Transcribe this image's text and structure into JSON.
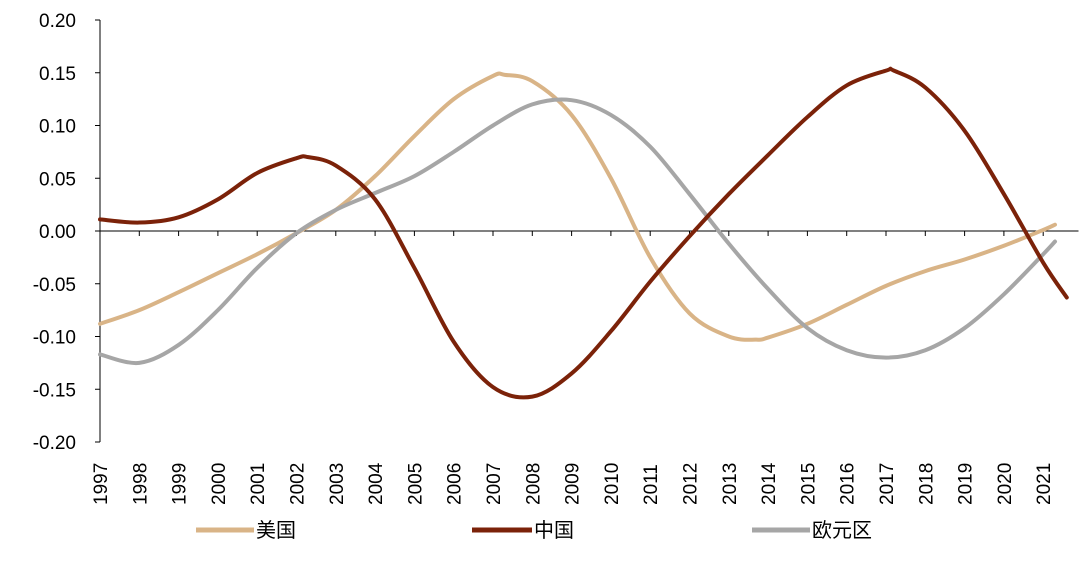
{
  "chart_data": {
    "type": "line",
    "title": "",
    "xlabel": "",
    "ylabel": "",
    "ylim": [
      -0.2,
      0.2
    ],
    "xlim": [
      1997,
      2022
    ],
    "y_ticks": [
      "0.20",
      "0.15",
      "0.10",
      "0.05",
      "0.00",
      "-0.05",
      "-0.10",
      "-0.15",
      "-0.20"
    ],
    "x_ticks": [
      "1997",
      "1998",
      "1999",
      "2000",
      "2001",
      "2002",
      "2003",
      "2004",
      "2005",
      "2006",
      "2007",
      "2008",
      "2009",
      "2010",
      "2011",
      "2012",
      "2013",
      "2014",
      "2015",
      "2016",
      "2017",
      "2018",
      "2019",
      "2020",
      "2021"
    ],
    "grid": false,
    "legend": "bottom",
    "series": [
      {
        "name": "美国",
        "color": "#D9B487",
        "x": [
          1997,
          1998,
          1999,
          2000,
          2001,
          2002,
          2003,
          2004,
          2005,
          2006,
          2007,
          2007.3,
          2008,
          2009,
          2010,
          2011,
          2012,
          2013,
          2013.7,
          2014,
          2015,
          2016,
          2017,
          2018,
          2019,
          2020,
          2021,
          2021.3
        ],
        "values": [
          -0.088,
          -0.075,
          -0.058,
          -0.04,
          -0.022,
          -0.002,
          0.02,
          0.052,
          0.09,
          0.125,
          0.147,
          0.148,
          0.142,
          0.11,
          0.05,
          -0.025,
          -0.078,
          -0.1,
          -0.103,
          -0.101,
          -0.088,
          -0.07,
          -0.052,
          -0.038,
          -0.027,
          -0.014,
          0.001,
          0.006
        ]
      },
      {
        "name": "中国",
        "color": "#7B2209",
        "x": [
          1997,
          1998,
          1999,
          2000,
          2001,
          2002,
          2002.3,
          2003,
          2004,
          2005,
          2006,
          2007,
          2008,
          2009,
          2010,
          2011,
          2012,
          2013,
          2014,
          2015,
          2016,
          2017,
          2017.2,
          2018,
          2019,
          2020,
          2021,
          2021.6
        ],
        "values": [
          0.011,
          0.008,
          0.013,
          0.03,
          0.055,
          0.069,
          0.07,
          0.062,
          0.03,
          -0.035,
          -0.105,
          -0.148,
          -0.157,
          -0.135,
          -0.095,
          -0.048,
          -0.005,
          0.035,
          0.072,
          0.108,
          0.138,
          0.152,
          0.152,
          0.136,
          0.095,
          0.035,
          -0.03,
          -0.063
        ]
      },
      {
        "name": "欧元区",
        "color": "#A6A6A6",
        "x": [
          1997,
          1998,
          1999,
          2000,
          2001,
          2002,
          2003,
          2004,
          2005,
          2006,
          2007,
          2008,
          2009,
          2010,
          2011,
          2012,
          2013,
          2014,
          2015,
          2016,
          2017,
          2018,
          2019,
          2020,
          2021,
          2021.3
        ],
        "values": [
          -0.117,
          -0.125,
          -0.108,
          -0.075,
          -0.035,
          -0.002,
          0.02,
          0.036,
          0.052,
          0.075,
          0.1,
          0.12,
          0.124,
          0.11,
          0.08,
          0.035,
          -0.012,
          -0.055,
          -0.092,
          -0.113,
          -0.12,
          -0.113,
          -0.092,
          -0.06,
          -0.022,
          -0.01
        ]
      }
    ]
  }
}
